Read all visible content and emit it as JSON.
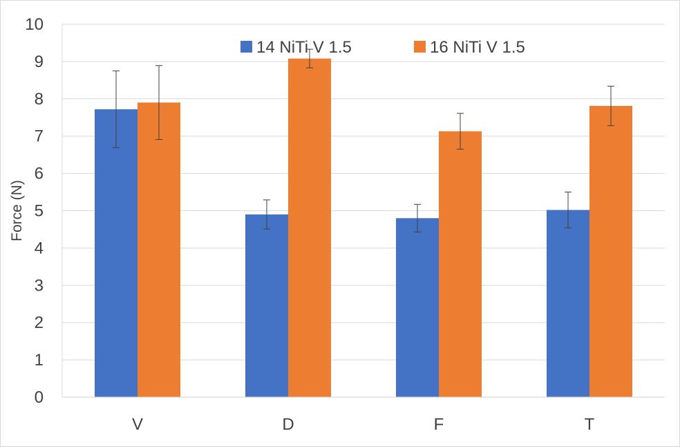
{
  "chart_data": {
    "type": "bar",
    "title": "",
    "xlabel": "",
    "ylabel": "Force (N)",
    "ylim": [
      0,
      10
    ],
    "yticks": [
      "0",
      "1",
      "2",
      "3",
      "4",
      "5",
      "6",
      "7",
      "8",
      "9",
      "10"
    ],
    "grid": true,
    "legend_position": "top-center",
    "categories": [
      "V",
      "D",
      "F",
      "T"
    ],
    "series": [
      {
        "name": "14 NiTi V 1.5",
        "color": "#4472c4",
        "values": [
          7.72,
          4.9,
          4.8,
          5.02
        ],
        "error": [
          1.03,
          0.39,
          0.37,
          0.48
        ]
      },
      {
        "name": "16 NiTi V 1.5",
        "color": "#ed7d31",
        "values": [
          7.9,
          9.08,
          7.13,
          7.81
        ],
        "error": [
          0.99,
          0.25,
          0.48,
          0.53
        ]
      }
    ]
  }
}
